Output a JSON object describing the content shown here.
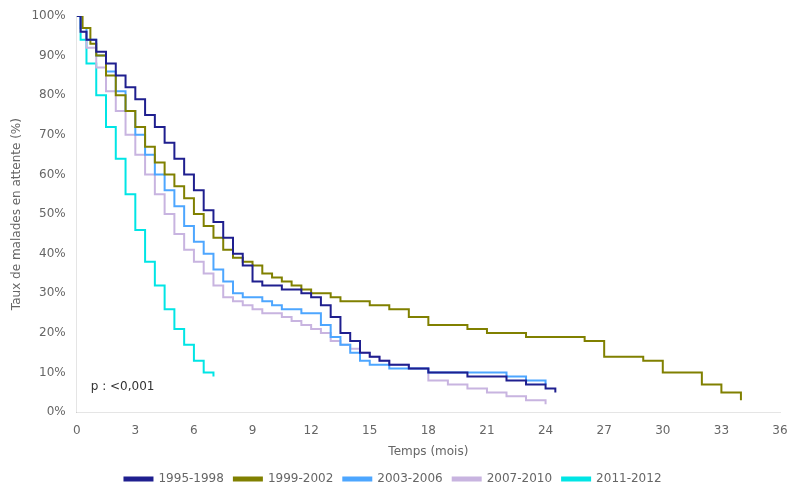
{
  "chart_data": {
    "type": "line",
    "line_style": "step",
    "xlabel": "Temps (mois)",
    "ylabel": "Taux de malades en attente (%)",
    "annotation": "p : <0,001",
    "xlim": [
      0,
      36
    ],
    "ylim": [
      0,
      1.0
    ],
    "xticks": [
      0,
      3,
      6,
      9,
      12,
      15,
      18,
      21,
      24,
      27,
      30,
      33,
      36
    ],
    "yticks": [
      {
        "value": 0,
        "label": "0%"
      },
      {
        "value": 0.1,
        "label": "10%"
      },
      {
        "value": 0.2,
        "label": "20%"
      },
      {
        "value": 0.3,
        "label": "30%"
      },
      {
        "value": 0.4,
        "label": "40%"
      },
      {
        "value": 0.5,
        "label": "50%"
      },
      {
        "value": 0.6,
        "label": "60%"
      },
      {
        "value": 0.7,
        "label": "70%"
      },
      {
        "value": 0.8,
        "label": "80%"
      },
      {
        "value": 0.9,
        "label": "90%"
      },
      {
        "value": 1.0,
        "label": "100%"
      }
    ],
    "grid": false,
    "legend": "bottom",
    "series": [
      {
        "name": "1995-1998",
        "color": "#1f1f8f",
        "x": [
          0,
          0.2,
          0.5,
          1,
          1.5,
          2,
          2.5,
          3,
          3.5,
          4,
          4.5,
          5,
          5.5,
          6,
          6.5,
          7,
          7.5,
          8,
          8.5,
          9,
          9.5,
          10,
          10.5,
          11,
          11.5,
          12,
          12.5,
          13,
          13.5,
          14,
          14.5,
          15,
          15.5,
          16,
          17,
          18,
          19,
          20,
          21,
          22,
          23,
          24,
          24.5
        ],
        "values": [
          1.0,
          0.96,
          0.94,
          0.91,
          0.88,
          0.85,
          0.82,
          0.79,
          0.75,
          0.72,
          0.68,
          0.64,
          0.6,
          0.56,
          0.51,
          0.48,
          0.44,
          0.4,
          0.37,
          0.33,
          0.32,
          0.32,
          0.31,
          0.31,
          0.3,
          0.29,
          0.27,
          0.24,
          0.2,
          0.18,
          0.15,
          0.14,
          0.13,
          0.12,
          0.11,
          0.1,
          0.1,
          0.09,
          0.09,
          0.08,
          0.07,
          0.06,
          0.05
        ]
      },
      {
        "name": "1999-2002",
        "color": "#808000",
        "x": [
          0,
          0.3,
          0.7,
          1,
          1.5,
          2,
          2.5,
          3,
          3.5,
          4,
          4.5,
          5,
          5.5,
          6,
          6.5,
          7,
          7.5,
          8,
          8.5,
          9,
          9.5,
          10,
          10.5,
          11,
          11.5,
          12,
          12.5,
          13,
          13.5,
          14,
          15,
          16,
          17,
          18,
          19,
          20,
          21,
          22,
          23,
          24,
          25,
          26,
          27,
          28,
          29,
          30,
          31,
          32,
          33,
          34
        ],
        "values": [
          1.0,
          0.97,
          0.93,
          0.9,
          0.85,
          0.8,
          0.76,
          0.72,
          0.67,
          0.63,
          0.6,
          0.57,
          0.54,
          0.5,
          0.47,
          0.44,
          0.41,
          0.39,
          0.38,
          0.37,
          0.35,
          0.34,
          0.33,
          0.32,
          0.31,
          0.3,
          0.3,
          0.29,
          0.28,
          0.28,
          0.27,
          0.26,
          0.24,
          0.22,
          0.22,
          0.21,
          0.2,
          0.2,
          0.19,
          0.19,
          0.19,
          0.18,
          0.14,
          0.14,
          0.13,
          0.1,
          0.1,
          0.07,
          0.05,
          0.03
        ]
      },
      {
        "name": "2003-2006",
        "color": "#4da6ff",
        "x": [
          0,
          0.2,
          0.5,
          1,
          1.5,
          2,
          2.5,
          3,
          3.5,
          4,
          4.5,
          5,
          5.5,
          6,
          6.5,
          7,
          7.5,
          8,
          8.5,
          9,
          9.5,
          10,
          10.5,
          11,
          11.5,
          12,
          12.5,
          13,
          13.5,
          14,
          14.5,
          15,
          16,
          17,
          18,
          19,
          20,
          21,
          22,
          23,
          24
        ],
        "values": [
          1.0,
          0.97,
          0.94,
          0.9,
          0.86,
          0.81,
          0.76,
          0.7,
          0.65,
          0.6,
          0.56,
          0.52,
          0.47,
          0.43,
          0.4,
          0.36,
          0.33,
          0.3,
          0.29,
          0.29,
          0.28,
          0.27,
          0.26,
          0.26,
          0.25,
          0.25,
          0.22,
          0.19,
          0.17,
          0.15,
          0.13,
          0.12,
          0.11,
          0.11,
          0.1,
          0.1,
          0.1,
          0.1,
          0.09,
          0.08,
          0.07
        ]
      },
      {
        "name": "2007-2010",
        "color": "#c8b4e0",
        "x": [
          0,
          0.2,
          0.5,
          1,
          1.5,
          2,
          2.5,
          3,
          3.5,
          4,
          4.5,
          5,
          5.5,
          6,
          6.5,
          7,
          7.5,
          8,
          8.5,
          9,
          9.5,
          10,
          10.5,
          11,
          11.5,
          12,
          12.5,
          13,
          13.5,
          14,
          14.5,
          15,
          15.5,
          16,
          17,
          18,
          19,
          20,
          21,
          22,
          23,
          24
        ],
        "values": [
          1.0,
          0.96,
          0.92,
          0.87,
          0.81,
          0.76,
          0.7,
          0.65,
          0.6,
          0.55,
          0.5,
          0.45,
          0.41,
          0.38,
          0.35,
          0.32,
          0.29,
          0.28,
          0.27,
          0.26,
          0.25,
          0.25,
          0.24,
          0.23,
          0.22,
          0.21,
          0.2,
          0.18,
          0.17,
          0.16,
          0.15,
          0.14,
          0.13,
          0.12,
          0.11,
          0.08,
          0.07,
          0.06,
          0.05,
          0.04,
          0.03,
          0.02
        ]
      },
      {
        "name": "2011-2012",
        "color": "#00e5e5",
        "x": [
          0,
          0.2,
          0.5,
          1,
          1.5,
          2,
          2.5,
          3,
          3.5,
          4,
          4.5,
          5,
          5.5,
          6,
          6.5,
          7
        ],
        "values": [
          1.0,
          0.94,
          0.88,
          0.8,
          0.72,
          0.64,
          0.55,
          0.46,
          0.38,
          0.32,
          0.26,
          0.21,
          0.17,
          0.13,
          0.1,
          0.09
        ]
      }
    ]
  }
}
